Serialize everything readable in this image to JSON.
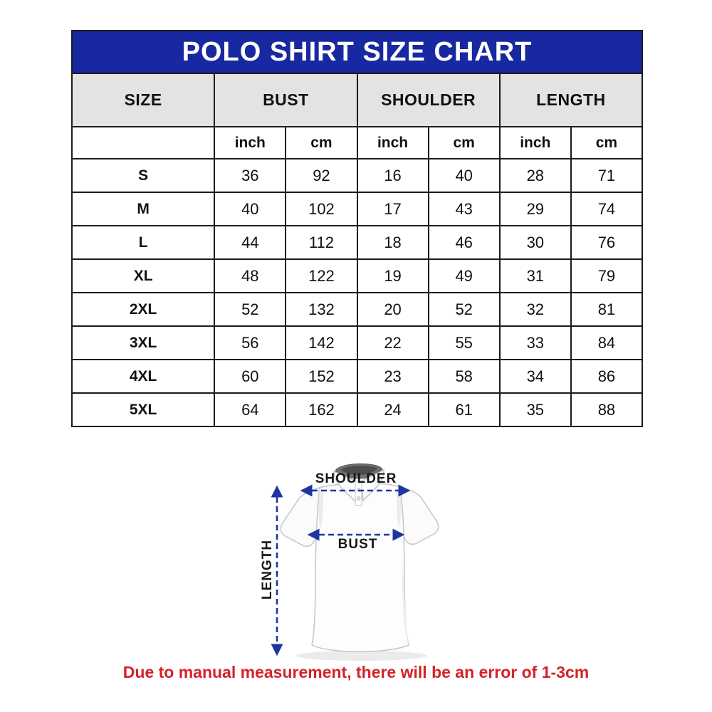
{
  "title": "POLO SHIRT SIZE CHART",
  "table": {
    "group_headers": [
      "SIZE",
      "BUST",
      "SHOULDER",
      "LENGTH"
    ],
    "unit_headers": [
      "inch",
      "cm",
      "inch",
      "cm",
      "inch",
      "cm"
    ],
    "rows": [
      {
        "size": "S",
        "values": [
          "36",
          "92",
          "16",
          "40",
          "28",
          "71"
        ]
      },
      {
        "size": "M",
        "values": [
          "40",
          "102",
          "17",
          "43",
          "29",
          "74"
        ]
      },
      {
        "size": "L",
        "values": [
          "44",
          "112",
          "18",
          "46",
          "30",
          "76"
        ]
      },
      {
        "size": "XL",
        "values": [
          "48",
          "122",
          "19",
          "49",
          "31",
          "79"
        ]
      },
      {
        "size": "2XL",
        "values": [
          "52",
          "132",
          "20",
          "52",
          "32",
          "81"
        ]
      },
      {
        "size": "3XL",
        "values": [
          "56",
          "142",
          "22",
          "55",
          "33",
          "84"
        ]
      },
      {
        "size": "4XL",
        "values": [
          "60",
          "152",
          "23",
          "58",
          "34",
          "86"
        ]
      },
      {
        "size": "5XL",
        "values": [
          "64",
          "162",
          "24",
          "61",
          "35",
          "88"
        ]
      }
    ]
  },
  "diagram": {
    "shoulder_label": "SHOULDER",
    "bust_label": "BUST",
    "length_label": "LENGTH"
  },
  "note": "Due to manual measurement, there will be an error of 1-3cm",
  "colors": {
    "title_bar_blue": "#1728A0",
    "header_gray": "#E4E3E1",
    "table_border": "#1b1b1b",
    "arrow_blue": "#1E35A3",
    "note_red": "#D4222A"
  }
}
